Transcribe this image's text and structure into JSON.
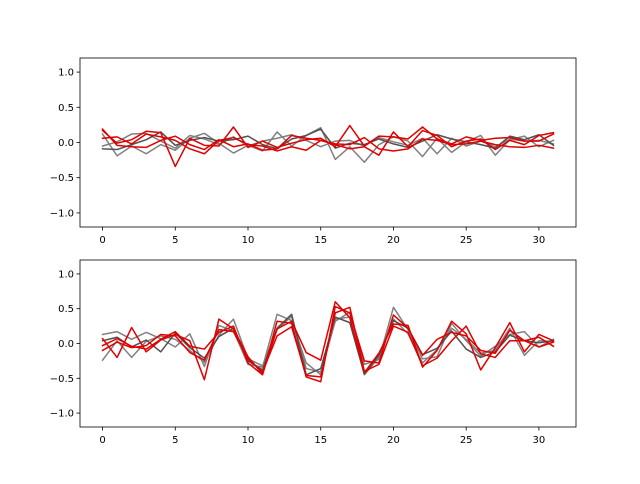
{
  "chart_data": [
    {
      "type": "line",
      "title": "",
      "xlabel": "",
      "ylabel": "",
      "xlim": [
        -1.55,
        32.55
      ],
      "ylim": [
        -1.2,
        1.2
      ],
      "xticks": [
        "0",
        "5",
        "10",
        "15",
        "20",
        "25",
        "30"
      ],
      "yticks": [
        "1.0",
        "0.5",
        "0.0",
        "−0.5",
        "−1.0"
      ],
      "xtick_values": [
        0,
        5,
        10,
        15,
        20,
        25,
        30
      ],
      "ytick_values": [
        1.0,
        0.5,
        0.0,
        -0.5,
        -1.0
      ],
      "grid": false,
      "legend": "none",
      "x": [
        0,
        1,
        2,
        3,
        4,
        5,
        6,
        7,
        8,
        9,
        10,
        11,
        12,
        13,
        14,
        15,
        16,
        17,
        18,
        19,
        20,
        21,
        22,
        23,
        24,
        25,
        26,
        27,
        28,
        29,
        30,
        31
      ],
      "series": [
        {
          "color": "#808080",
          "values": [
            0.12,
            -0.19,
            -0.05,
            -0.16,
            -0.03,
            -0.11,
            0.06,
            0.13,
            -0.01,
            -0.15,
            -0.04,
            -0.12,
            0.15,
            -0.05,
            0.1,
            0.21,
            -0.24,
            -0.06,
            -0.28,
            -0.03,
            0.08,
            0.02,
            -0.2,
            0.06,
            -0.14,
            0.01,
            0.1,
            -0.18,
            0.04,
            0.09,
            -0.06,
            0.03
          ]
        },
        {
          "color": "#808080",
          "values": [
            -0.05,
            0.01,
            0.12,
            0.13,
            0.02,
            -0.08,
            0.1,
            0.05,
            -0.03,
            0.08,
            -0.05,
            0.02,
            0.06,
            0.11,
            0.03,
            -0.06,
            0.02,
            0.03,
            -0.05,
            0.07,
            0.01,
            -0.04,
            0.06,
            -0.16,
            0.06,
            -0.05,
            0.02,
            -0.06,
            0.05,
            0.02,
            0.03,
            -0.02
          ]
        },
        {
          "color": "#505050",
          "values": [
            -0.09,
            -0.1,
            -0.03,
            0.04,
            0.15,
            -0.04,
            0.03,
            0.07,
            0.02,
            0.04,
            0.09,
            -0.03,
            -0.09,
            0.05,
            0.1,
            0.19,
            -0.08,
            -0.01,
            -0.03,
            0.05,
            -0.02,
            -0.07,
            0.02,
            0.11,
            0.05,
            0.01,
            -0.03,
            -0.08,
            0.09,
            0.04,
            0.11,
            -0.04
          ]
        },
        {
          "color": "#e00000",
          "values": [
            0.17,
            -0.01,
            0.04,
            0.16,
            0.14,
            -0.34,
            0.06,
            -0.04,
            -0.05,
            0.22,
            -0.07,
            0.02,
            -0.07,
            -0.01,
            0.04,
            0.06,
            -0.06,
            0.24,
            -0.05,
            0.09,
            0.08,
            0.05,
            0.22,
            0.05,
            -0.02,
            0.08,
            0.03,
            0.06,
            0.07,
            0.02,
            0.02,
            0.12
          ]
        },
        {
          "color": "#e00000",
          "values": [
            0.19,
            -0.04,
            -0.06,
            -0.07,
            0.03,
            0.09,
            -0.03,
            -0.1,
            0.04,
            -0.06,
            -0.02,
            -0.11,
            -0.09,
            0.1,
            0.06,
            0.03,
            -0.03,
            -0.09,
            -0.06,
            -0.18,
            0.15,
            -0.06,
            0.17,
            0.1,
            -0.06,
            0.02,
            0.05,
            -0.1,
            0.03,
            -0.03,
            0.1,
            0.14
          ]
        },
        {
          "color": "#e00000",
          "values": [
            0.06,
            0.08,
            -0.02,
            0.12,
            0.08,
            0.03,
            -0.09,
            -0.16,
            0.03,
            0.07,
            -0.03,
            -0.05,
            -0.12,
            -0.06,
            -0.11,
            0.03,
            -0.02,
            -0.03,
            0.07,
            -0.09,
            -0.12,
            -0.09,
            0.05,
            0.03,
            -0.03,
            -0.02,
            0.02,
            -0.03,
            -0.06,
            -0.07,
            -0.04,
            -0.08
          ]
        }
      ]
    },
    {
      "type": "line",
      "title": "",
      "xlabel": "",
      "ylabel": "",
      "xlim": [
        -1.55,
        32.55
      ],
      "ylim": [
        -1.2,
        1.2
      ],
      "xticks": [
        "0",
        "5",
        "10",
        "15",
        "20",
        "25",
        "30"
      ],
      "yticks": [
        "1.0",
        "0.5",
        "0.0",
        "−0.5",
        "−1.0"
      ],
      "xtick_values": [
        0,
        5,
        10,
        15,
        20,
        25,
        30
      ],
      "ytick_values": [
        1.0,
        0.5,
        0.0,
        -0.5,
        -1.0
      ],
      "grid": false,
      "legend": "none",
      "x": [
        0,
        1,
        2,
        3,
        4,
        5,
        6,
        7,
        8,
        9,
        10,
        11,
        12,
        13,
        14,
        15,
        16,
        17,
        18,
        19,
        20,
        21,
        22,
        23,
        24,
        25,
        26,
        27,
        28,
        29,
        30,
        31
      ],
      "series": [
        {
          "color": "#808080",
          "values": [
            -0.24,
            0.04,
            -0.2,
            0.03,
            0.11,
            0.06,
            -0.1,
            -0.27,
            0.12,
            0.35,
            -0.22,
            -0.32,
            0.2,
            0.39,
            -0.36,
            -0.41,
            0.32,
            0.45,
            -0.3,
            -0.23,
            0.52,
            0.2,
            -0.22,
            -0.19,
            0.29,
            0.04,
            -0.18,
            -0.04,
            0.13,
            0.17,
            -0.05,
            0.06
          ]
        },
        {
          "color": "#808080",
          "values": [
            0.13,
            0.17,
            0.06,
            0.16,
            0.07,
            -0.05,
            0.14,
            -0.33,
            0.26,
            0.18,
            -0.3,
            -0.34,
            0.42,
            0.33,
            -0.28,
            -0.45,
            0.35,
            0.38,
            -0.45,
            -0.2,
            0.35,
            0.14,
            -0.28,
            -0.09,
            0.22,
            0.06,
            -0.14,
            -0.1,
            0.22,
            -0.17,
            0.04,
            0.03
          ]
        },
        {
          "color": "#505050",
          "values": [
            0.04,
            0.09,
            -0.05,
            0.05,
            -0.12,
            0.15,
            -0.06,
            -0.21,
            0.1,
            0.22,
            -0.25,
            -0.38,
            0.22,
            0.42,
            -0.45,
            -0.36,
            0.38,
            0.3,
            -0.44,
            -0.17,
            0.33,
            0.22,
            -0.16,
            -0.07,
            0.18,
            -0.08,
            -0.2,
            -0.12,
            0.12,
            0.04,
            0.01,
            0.04
          ]
        },
        {
          "color": "#e00000",
          "values": [
            0.07,
            -0.2,
            0.23,
            -0.12,
            0.05,
            0.13,
            0.04,
            -0.52,
            0.35,
            0.21,
            -0.19,
            -0.44,
            0.21,
            0.32,
            -0.13,
            -0.24,
            0.6,
            0.37,
            -0.42,
            -0.14,
            0.28,
            0.26,
            -0.34,
            -0.1,
            0.32,
            0.14,
            -0.38,
            -0.06,
            0.3,
            -0.12,
            0.13,
            0.04
          ]
        },
        {
          "color": "#e00000",
          "values": [
            -0.03,
            0.07,
            -0.04,
            -0.08,
            0.06,
            0.17,
            -0.04,
            -0.08,
            0.16,
            0.25,
            -0.28,
            -0.45,
            0.32,
            0.29,
            -0.48,
            -0.55,
            0.53,
            0.44,
            -0.25,
            -0.28,
            0.41,
            0.22,
            -0.17,
            0.06,
            0.16,
            0.11,
            -0.1,
            -0.14,
            0.19,
            0.04,
            0.09,
            -0.04
          ]
        },
        {
          "color": "#e00000",
          "values": [
            -0.1,
            0.02,
            -0.06,
            -0.03,
            0.13,
            0.11,
            -0.13,
            -0.24,
            0.2,
            0.17,
            -0.22,
            -0.41,
            0.11,
            0.24,
            -0.46,
            -0.48,
            0.44,
            0.52,
            -0.4,
            -0.3,
            0.25,
            0.16,
            -0.32,
            -0.21,
            0.04,
            0.25,
            -0.15,
            -0.2,
            0.04,
            0.04,
            -0.05,
            0.02
          ]
        }
      ]
    }
  ]
}
